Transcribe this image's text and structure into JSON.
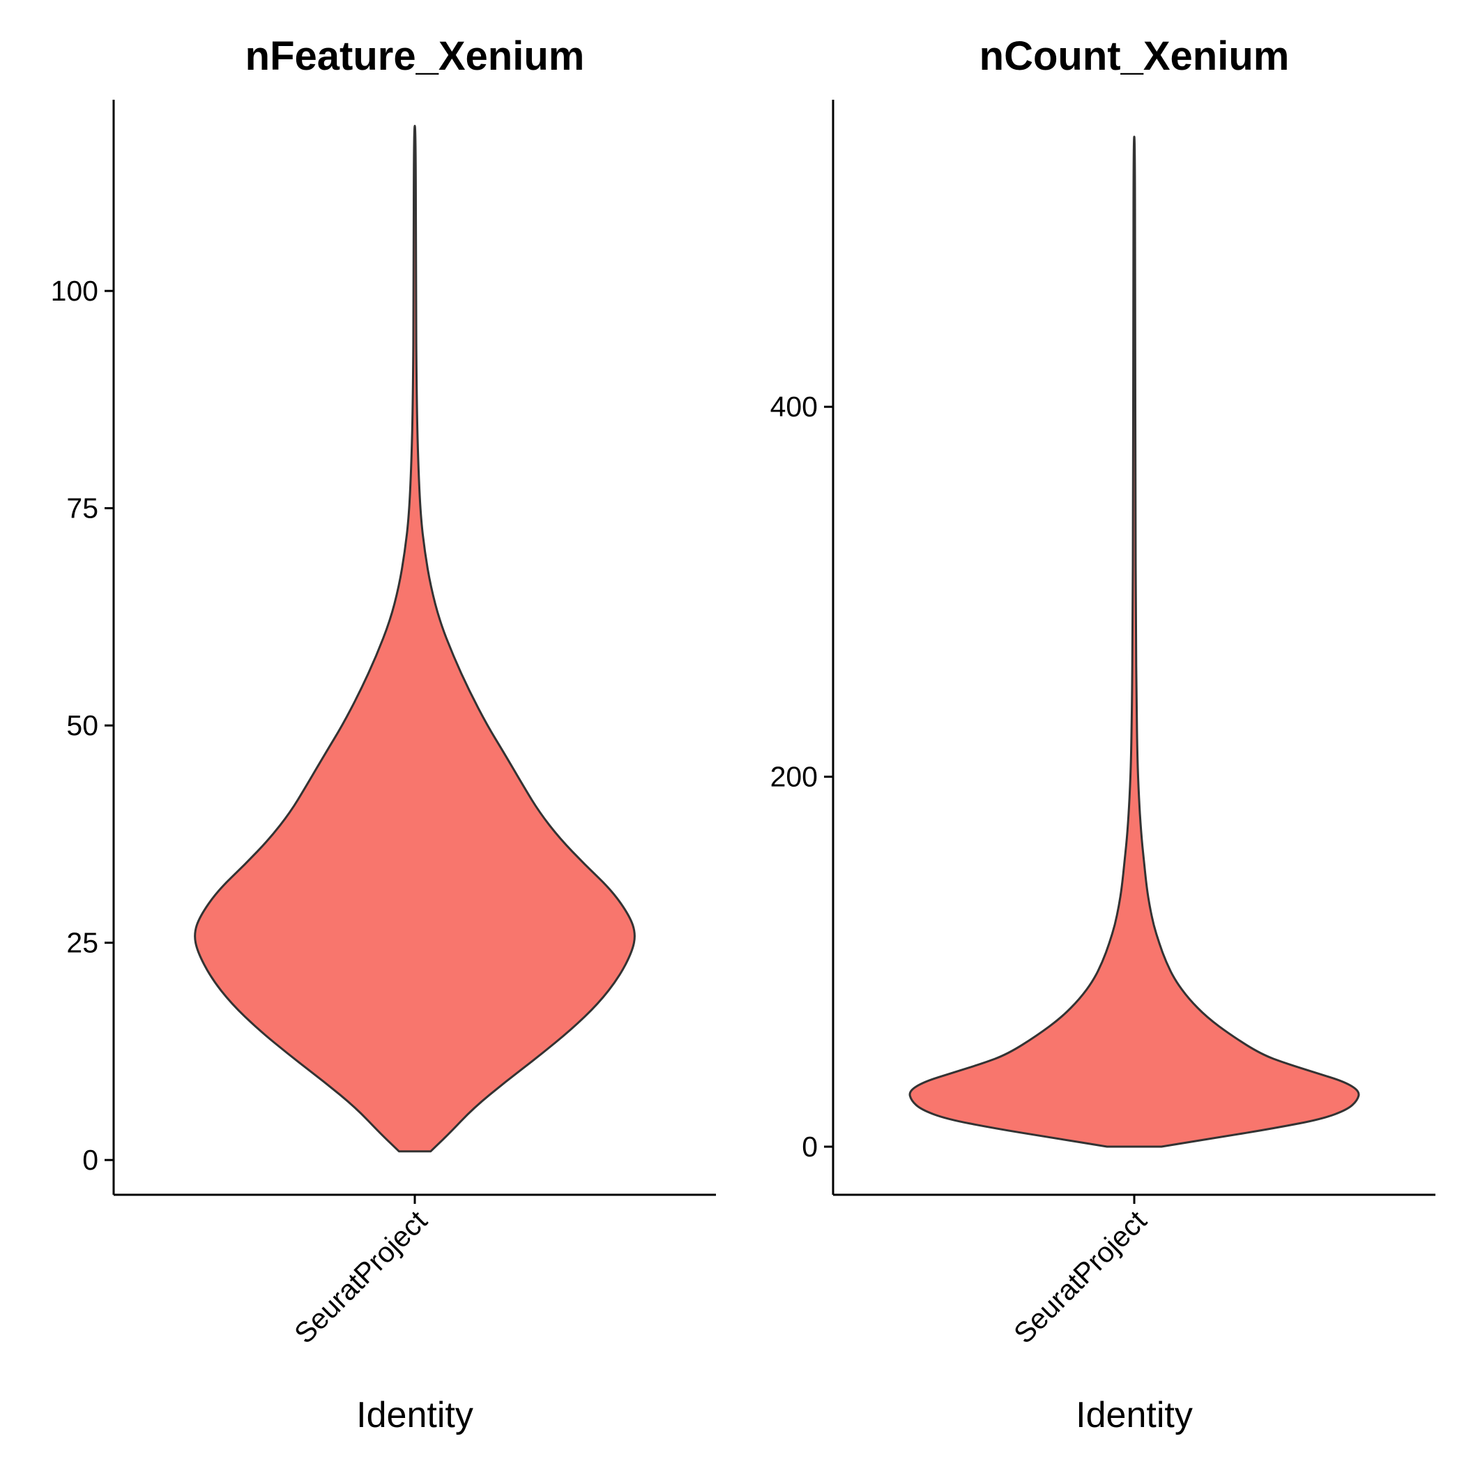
{
  "chart_data": [
    {
      "type": "violin",
      "title": "nFeature_Xenium",
      "xlabel": "Identity",
      "ylabel": "",
      "categories": [
        "SeuratProject"
      ],
      "ylim": [
        -4,
        122
      ],
      "yticks": [
        0,
        25,
        50,
        75,
        100
      ],
      "fill_color": "#F8766D",
      "outline_color": "#333333",
      "grid": false,
      "legend": "none",
      "violin_profile": [
        {
          "y": 1,
          "w": 0.07
        },
        {
          "y": 3,
          "w": 0.15
        },
        {
          "y": 6,
          "w": 0.26
        },
        {
          "y": 9,
          "w": 0.4
        },
        {
          "y": 12,
          "w": 0.55
        },
        {
          "y": 15,
          "w": 0.69
        },
        {
          "y": 18,
          "w": 0.81
        },
        {
          "y": 21,
          "w": 0.9
        },
        {
          "y": 24,
          "w": 0.96
        },
        {
          "y": 26,
          "w": 0.975
        },
        {
          "y": 28,
          "w": 0.95
        },
        {
          "y": 31,
          "w": 0.87
        },
        {
          "y": 34,
          "w": 0.75
        },
        {
          "y": 37,
          "w": 0.64
        },
        {
          "y": 40,
          "w": 0.55
        },
        {
          "y": 43,
          "w": 0.48
        },
        {
          "y": 47,
          "w": 0.39
        },
        {
          "y": 50,
          "w": 0.32
        },
        {
          "y": 54,
          "w": 0.24
        },
        {
          "y": 58,
          "w": 0.17
        },
        {
          "y": 62,
          "w": 0.11
        },
        {
          "y": 66,
          "w": 0.07
        },
        {
          "y": 70,
          "w": 0.044
        },
        {
          "y": 74,
          "w": 0.026
        },
        {
          "y": 80,
          "w": 0.015
        },
        {
          "y": 88,
          "w": 0.008
        },
        {
          "y": 100,
          "w": 0.005
        },
        {
          "y": 119,
          "w": 0.004
        }
      ]
    },
    {
      "type": "violin",
      "title": "nCount_Xenium",
      "xlabel": "Identity",
      "ylabel": "",
      "categories": [
        "SeuratProject"
      ],
      "ylim": [
        -26,
        566
      ],
      "yticks": [
        0,
        200,
        400
      ],
      "fill_color": "#F8766D",
      "outline_color": "#333333",
      "grid": false,
      "legend": "none",
      "violin_profile": [
        {
          "y": 0,
          "w": 0.12
        },
        {
          "y": 5,
          "w": 0.37
        },
        {
          "y": 10,
          "w": 0.62
        },
        {
          "y": 15,
          "w": 0.83
        },
        {
          "y": 20,
          "w": 0.94
        },
        {
          "y": 25,
          "w": 0.985
        },
        {
          "y": 30,
          "w": 0.995
        },
        {
          "y": 35,
          "w": 0.93
        },
        {
          "y": 40,
          "w": 0.8
        },
        {
          "y": 45,
          "w": 0.67
        },
        {
          "y": 50,
          "w": 0.56
        },
        {
          "y": 60,
          "w": 0.43
        },
        {
          "y": 70,
          "w": 0.32
        },
        {
          "y": 80,
          "w": 0.24
        },
        {
          "y": 90,
          "w": 0.18
        },
        {
          "y": 100,
          "w": 0.14
        },
        {
          "y": 110,
          "w": 0.11
        },
        {
          "y": 120,
          "w": 0.085
        },
        {
          "y": 130,
          "w": 0.068
        },
        {
          "y": 140,
          "w": 0.055
        },
        {
          "y": 155,
          "w": 0.042
        },
        {
          "y": 170,
          "w": 0.03
        },
        {
          "y": 190,
          "w": 0.02
        },
        {
          "y": 210,
          "w": 0.014
        },
        {
          "y": 240,
          "w": 0.01
        },
        {
          "y": 280,
          "w": 0.007
        },
        {
          "y": 350,
          "w": 0.005
        },
        {
          "y": 450,
          "w": 0.004
        },
        {
          "y": 546,
          "w": 0.003
        }
      ]
    }
  ]
}
